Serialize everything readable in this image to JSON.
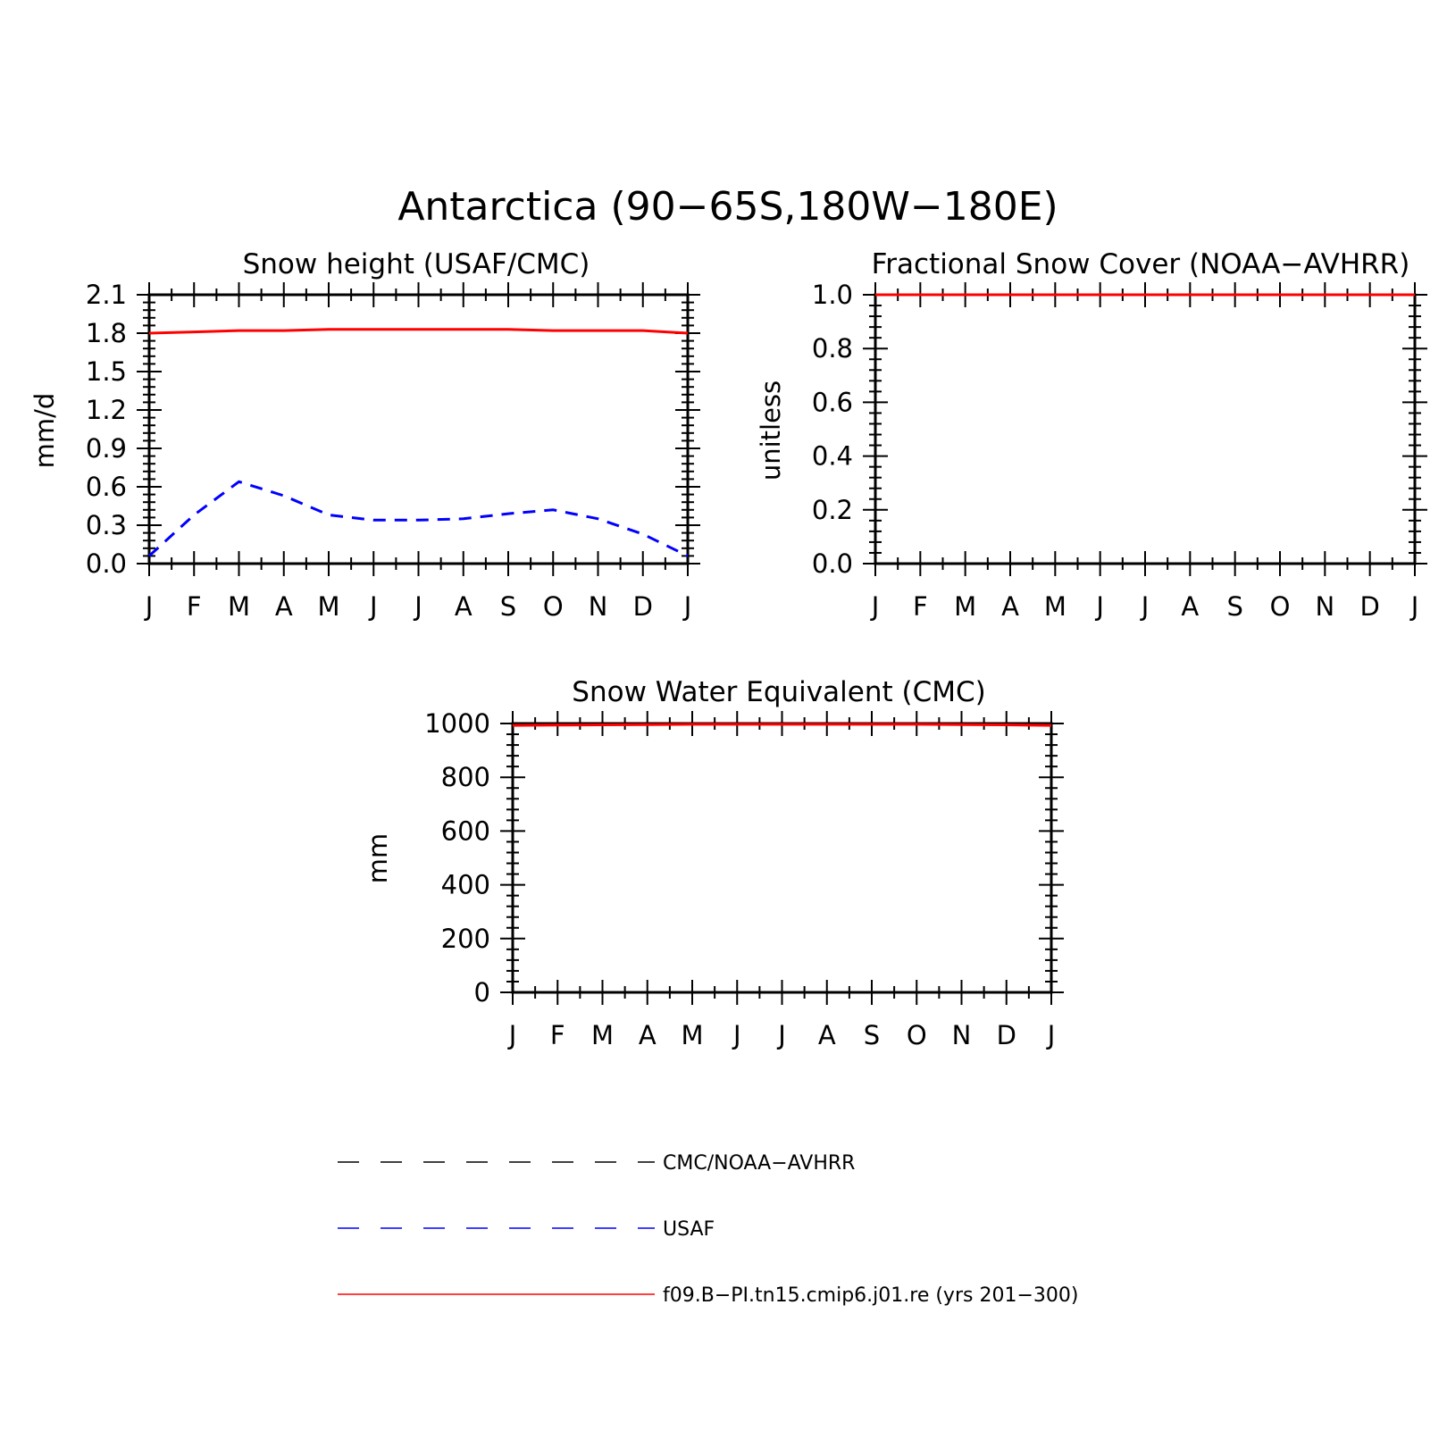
{
  "figure": {
    "title": "Antarctica (90−65S,180W−180E)"
  },
  "chart_data": [
    {
      "type": "line",
      "title": "Snow height (USAF/CMC)",
      "xlabel": "",
      "ylabel": "mm/d",
      "categories": [
        "J",
        "F",
        "M",
        "A",
        "M",
        "J",
        "J",
        "A",
        "S",
        "O",
        "N",
        "D",
        "J"
      ],
      "ylim": [
        0,
        2.1
      ],
      "yticks": [
        0.0,
        0.3,
        0.6,
        0.9,
        1.2,
        1.5,
        1.8,
        2.1
      ],
      "ytick_labels": [
        "0.0",
        "0.3",
        "0.6",
        "0.9",
        "1.2",
        "1.5",
        "1.8",
        "2.1"
      ],
      "series": [
        {
          "name": "CMC/NOAA-AVHRR",
          "color": "#000000",
          "style": "dashed",
          "values": [
            0,
            0,
            0,
            0,
            0,
            0,
            0,
            0,
            0,
            0,
            0,
            0,
            0
          ]
        },
        {
          "name": "USAF",
          "color": "#0000ff",
          "style": "dashed",
          "values": [
            0.06,
            0.38,
            0.64,
            0.53,
            0.38,
            0.34,
            0.34,
            0.35,
            0.39,
            0.42,
            0.35,
            0.23,
            0.06
          ]
        },
        {
          "name": "f09.B−PI.tn15.cmip6.j01.re (yrs 201−300)",
          "color": "#ff0000",
          "style": "solid",
          "values": [
            1.8,
            1.81,
            1.82,
            1.82,
            1.83,
            1.83,
            1.83,
            1.83,
            1.83,
            1.82,
            1.82,
            1.82,
            1.8
          ]
        }
      ]
    },
    {
      "type": "line",
      "title": "Fractional Snow Cover (NOAA−AVHRR)",
      "xlabel": "",
      "ylabel": "unitless",
      "categories": [
        "J",
        "F",
        "M",
        "A",
        "M",
        "J",
        "J",
        "A",
        "S",
        "O",
        "N",
        "D",
        "J"
      ],
      "ylim": [
        0,
        1.0
      ],
      "yticks": [
        0.0,
        0.2,
        0.4,
        0.6,
        0.8,
        1.0
      ],
      "ytick_labels": [
        "0.0",
        "0.2",
        "0.4",
        "0.6",
        "0.8",
        "1.0"
      ],
      "series": [
        {
          "name": "CMC/NOAA-AVHRR",
          "color": "#000000",
          "style": "dashed",
          "values": [
            0,
            0,
            0,
            0,
            0,
            0,
            0,
            0,
            0,
            0,
            0,
            0,
            0
          ]
        },
        {
          "name": "f09.B−PI.tn15.cmip6.j01.re (yrs 201−300)",
          "color": "#ff0000",
          "style": "solid",
          "values": [
            1.0,
            1.0,
            1.0,
            1.0,
            1.0,
            1.0,
            1.0,
            1.0,
            1.0,
            1.0,
            1.0,
            1.0,
            1.0
          ]
        }
      ]
    },
    {
      "type": "line",
      "title": "Snow Water Equivalent (CMC)",
      "xlabel": "",
      "ylabel": "mm",
      "categories": [
        "J",
        "F",
        "M",
        "A",
        "M",
        "J",
        "J",
        "A",
        "S",
        "O",
        "N",
        "D",
        "J"
      ],
      "ylim": [
        0,
        1000
      ],
      "yticks": [
        0,
        200,
        400,
        600,
        800,
        1000
      ],
      "ytick_labels": [
        "0",
        "200",
        "400",
        "600",
        "800",
        "1000"
      ],
      "series": [
        {
          "name": "CMC/NOAA-AVHRR",
          "color": "#000000",
          "style": "dashed",
          "values": [
            0,
            0,
            0,
            0,
            0,
            0,
            0,
            0,
            0,
            0,
            0,
            0,
            0
          ]
        },
        {
          "name": "f09.B−PI.tn15.cmip6.j01.re (yrs 201−300)",
          "color": "#ff0000",
          "style": "solid",
          "values": [
            993,
            994,
            995,
            996,
            997,
            997,
            997,
            997,
            997,
            997,
            996,
            995,
            993
          ]
        }
      ]
    }
  ],
  "legend": {
    "placement": "bottom",
    "items": [
      {
        "label": "CMC/NOAA−AVHRR",
        "color": "#000000",
        "style": "dashed"
      },
      {
        "label": "USAF",
        "color": "#0000ff",
        "style": "dashed"
      },
      {
        "label": "f09.B−PI.tn15.cmip6.j01.re (yrs 201−300)",
        "color": "#ff0000",
        "style": "solid"
      }
    ]
  }
}
